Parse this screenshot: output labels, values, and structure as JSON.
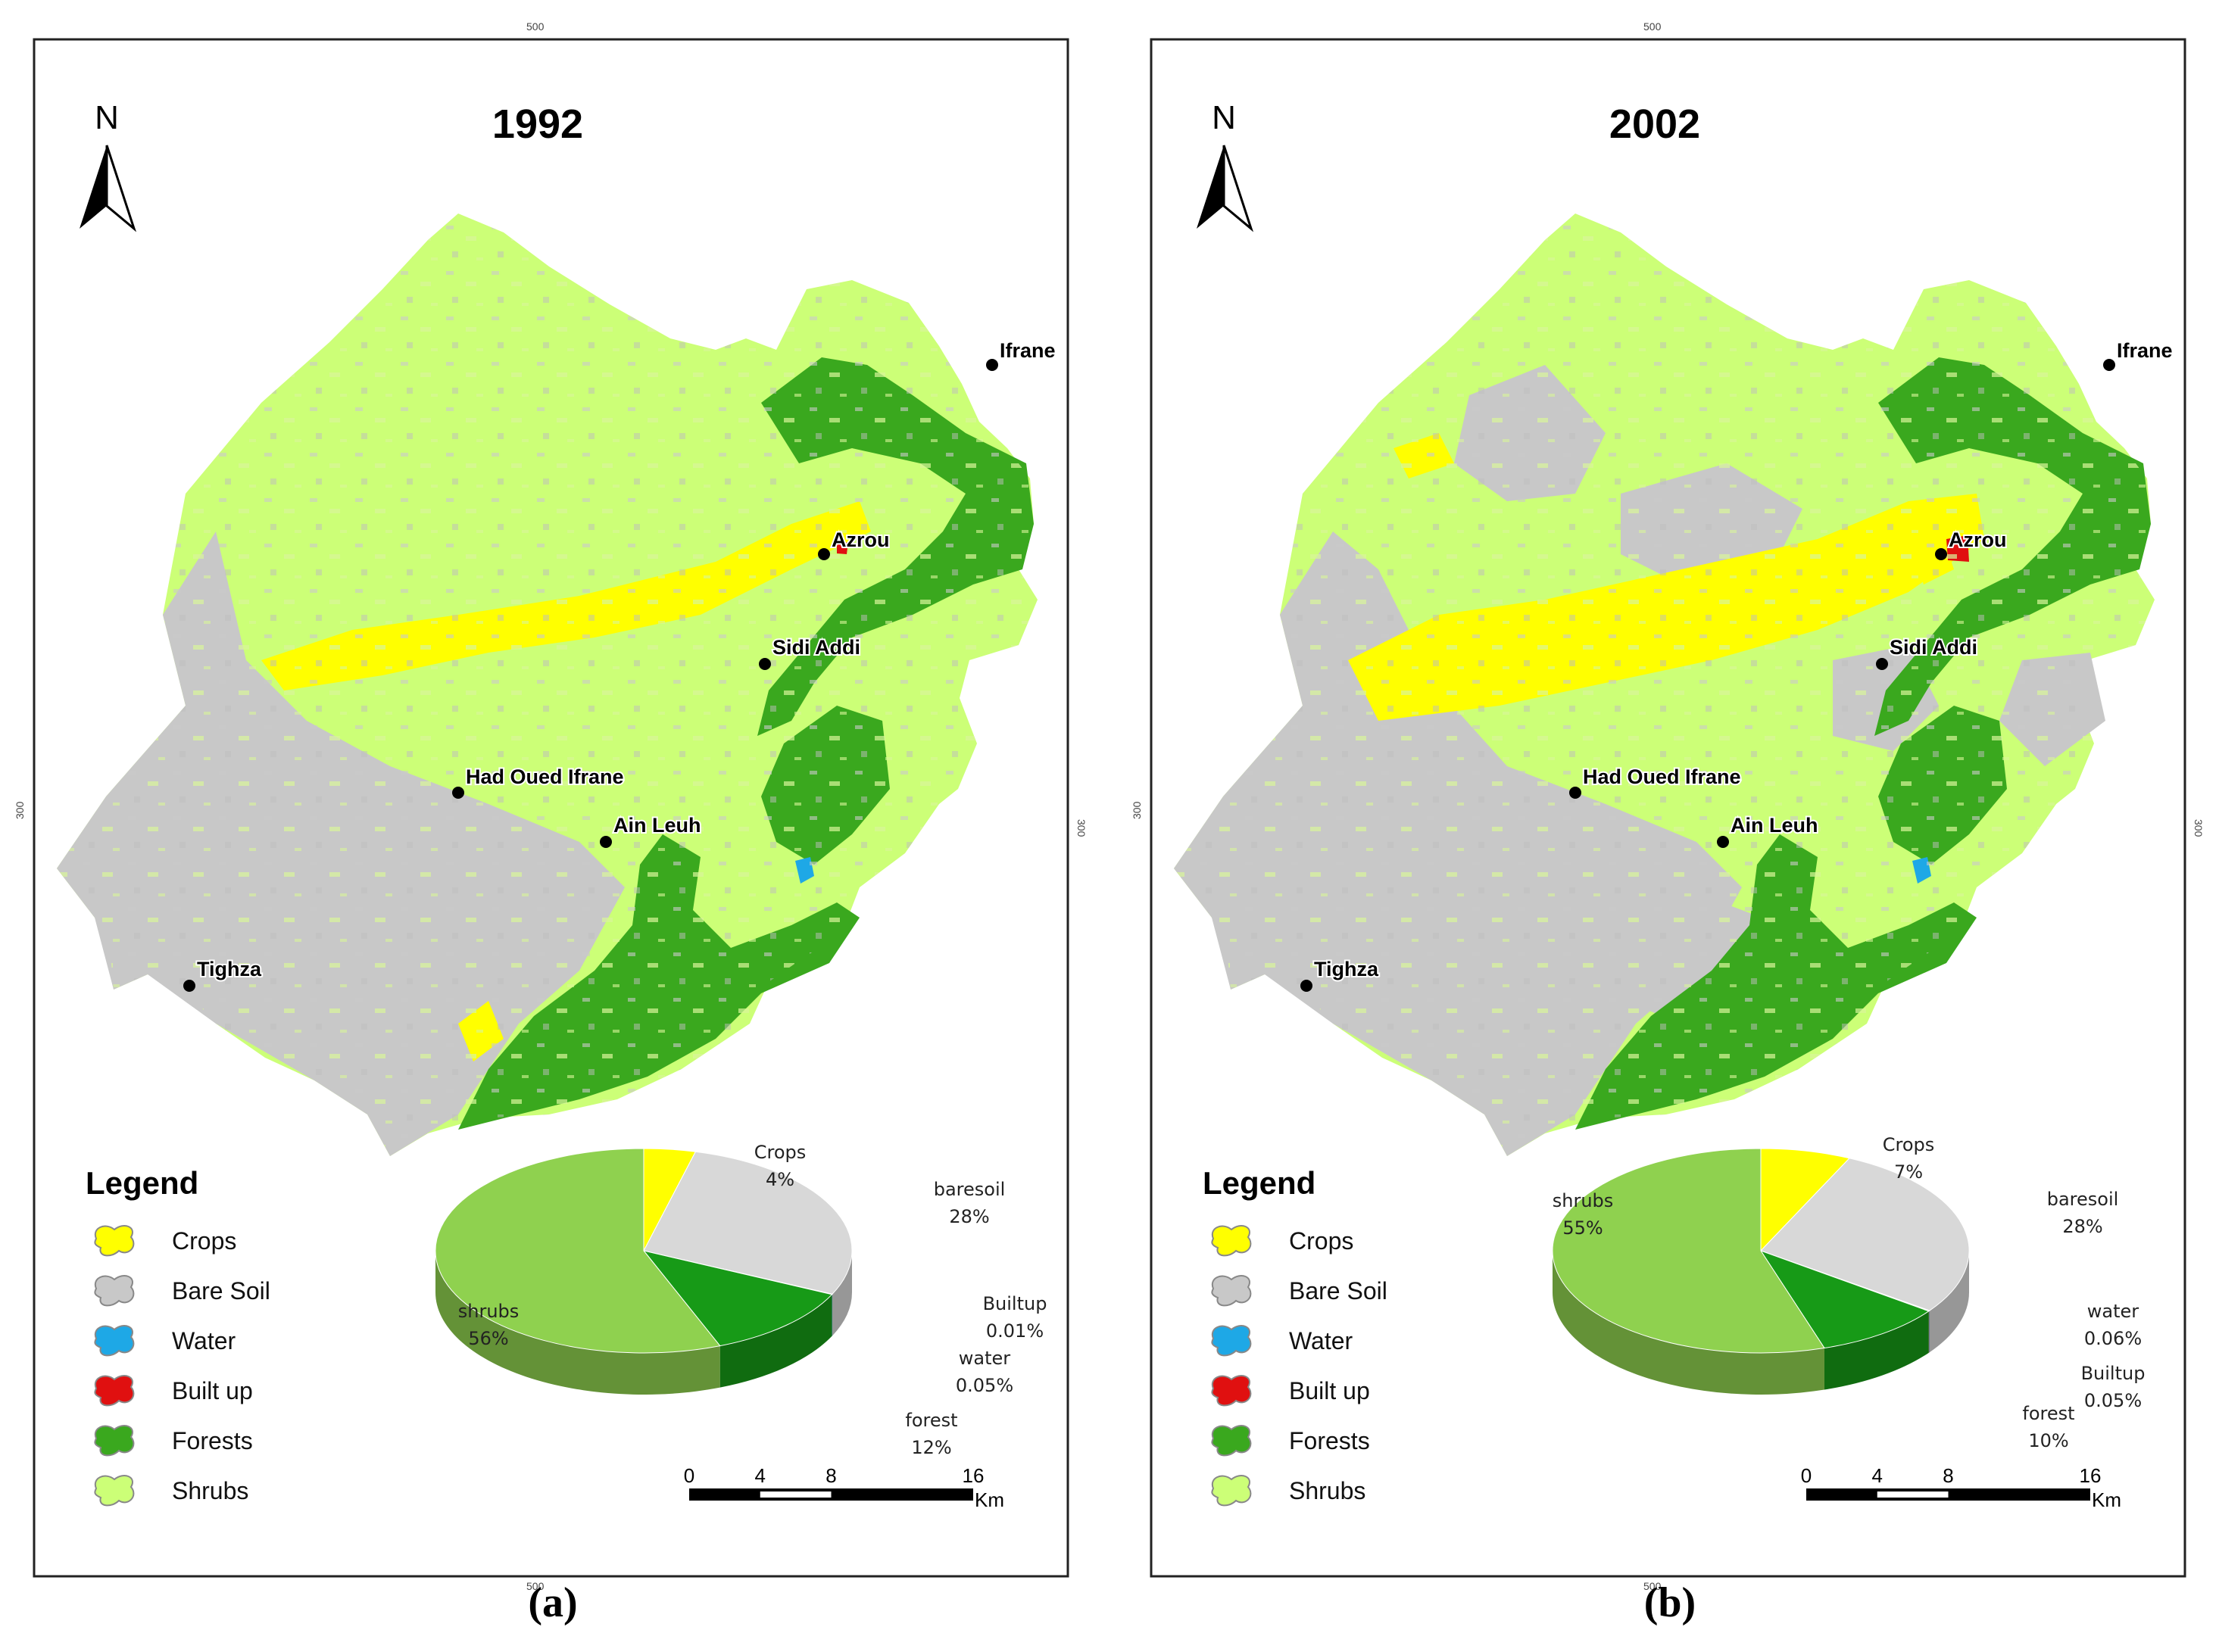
{
  "figure": {
    "panels": [
      {
        "id": "a",
        "caption": "(a)",
        "year": "1992",
        "north_label": "N",
        "grid_tick_top": "500",
        "grid_tick_bottom": "500",
        "grid_tick_left": "300",
        "grid_tick_right": "300",
        "legend_title": "Legend",
        "legend": [
          {
            "label": "Crops",
            "color": "#ffff00"
          },
          {
            "label": "Bare Soil",
            "color": "#c8c8c8"
          },
          {
            "label": "Water",
            "color": "#1ea8e6"
          },
          {
            "label": "Built up",
            "color": "#e01010"
          },
          {
            "label": "Forests",
            "color": "#3aa81e"
          },
          {
            "label": "Shrubs",
            "color": "#ccff77"
          }
        ],
        "places": [
          "Ifrane",
          "Azrou",
          "Sidi Addi",
          "Had Oued Ifrane",
          "Ain Leuh",
          "Tighza"
        ],
        "pie": {
          "slices": [
            {
              "name": "Crops",
              "pct": "4%",
              "value": 4,
              "color": "#ffff00"
            },
            {
              "name": "baresoil",
              "pct": "28%",
              "value": 28,
              "color": "#d8d8d8"
            },
            {
              "name": "Builtup",
              "pct": "0.01%",
              "value": 0.01,
              "color": "#e01010"
            },
            {
              "name": "water",
              "pct": "0.05%",
              "value": 0.05,
              "color": "#1ea8e6"
            },
            {
              "name": "forest",
              "pct": "12%",
              "value": 12,
              "color": "#179a17"
            },
            {
              "name": "shrubs",
              "pct": "56%",
              "value": 56,
              "color": "#8fd14f"
            }
          ]
        },
        "scale": {
          "ticks": [
            "0",
            "4",
            "8",
            "16"
          ],
          "unit": "Km"
        }
      },
      {
        "id": "b",
        "caption": "(b)",
        "year": "2002",
        "north_label": "N",
        "grid_tick_top": "500",
        "grid_tick_bottom": "500",
        "grid_tick_left": "300",
        "grid_tick_right": "300",
        "legend_title": "Legend",
        "legend": [
          {
            "label": "Crops",
            "color": "#ffff00"
          },
          {
            "label": "Bare Soil",
            "color": "#c8c8c8"
          },
          {
            "label": "Water",
            "color": "#1ea8e6"
          },
          {
            "label": "Built up",
            "color": "#e01010"
          },
          {
            "label": "Forests",
            "color": "#3aa81e"
          },
          {
            "label": "Shrubs",
            "color": "#ccff77"
          }
        ],
        "places": [
          "Ifrane",
          "Azrou",
          "Sidi Addi",
          "Had Oued Ifrane",
          "Ain Leuh",
          "Tighza"
        ],
        "pie": {
          "slices": [
            {
              "name": "Crops",
              "pct": "7%",
              "value": 7,
              "color": "#ffff00"
            },
            {
              "name": "baresoil",
              "pct": "28%",
              "value": 28,
              "color": "#d8d8d8"
            },
            {
              "name": "water",
              "pct": "0.06%",
              "value": 0.06,
              "color": "#1ea8e6"
            },
            {
              "name": "Builtup",
              "pct": "0.05%",
              "value": 0.05,
              "color": "#e01010"
            },
            {
              "name": "forest",
              "pct": "10%",
              "value": 10,
              "color": "#179a17"
            },
            {
              "name": "shrubs",
              "pct": "55%",
              "value": 55,
              "color": "#8fd14f"
            }
          ]
        },
        "scale": {
          "ticks": [
            "0",
            "4",
            "8",
            "16"
          ],
          "unit": "Km"
        }
      }
    ]
  }
}
